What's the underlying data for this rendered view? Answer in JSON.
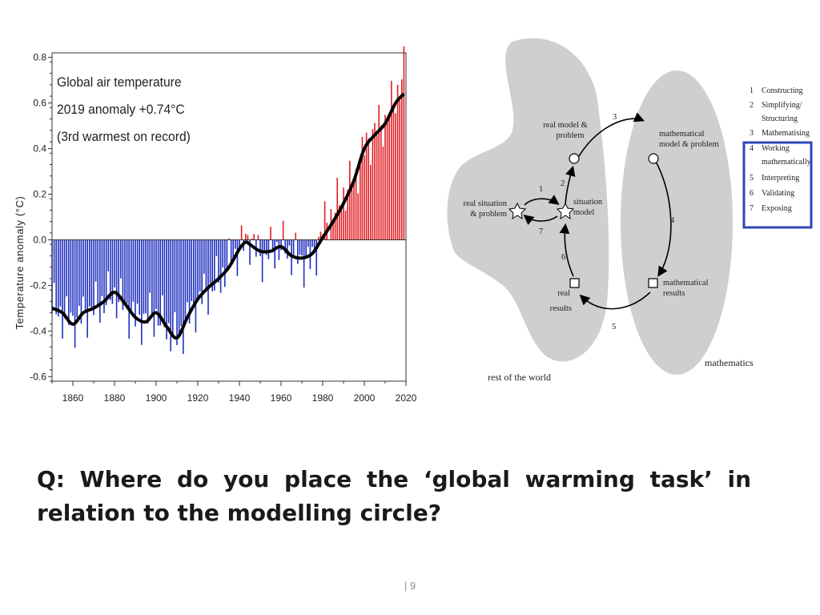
{
  "chart_data": {
    "type": "bar",
    "title_lines": [
      "Global air temperature",
      "2019 anomaly +0.74°C",
      "(3rd warmest on record)"
    ],
    "ylabel": "Temperature anomaly (°C)",
    "xlabel": "",
    "xlim": [
      1850,
      2020
    ],
    "ylim": [
      -0.62,
      0.82
    ],
    "xticks": [
      1860,
      1880,
      1900,
      1920,
      1940,
      1960,
      1980,
      2000,
      2020
    ],
    "yticks": [
      {
        "value": 0.8,
        "label": "0.8"
      },
      {
        "value": 0.6,
        "label": "0.6"
      },
      {
        "value": 0.4,
        "label": "0.4"
      },
      {
        "value": 0.2,
        "label": "0.2"
      },
      {
        "value": 0.0,
        "label": "0.0"
      },
      {
        "value": -0.2,
        "label": "-0.2"
      },
      {
        "value": -0.4,
        "label": "-0.4"
      },
      {
        "value": -0.6,
        "label": "-0.6"
      }
    ],
    "colors": {
      "positive": "#e31e24",
      "negative": "#1f2fbf",
      "smooth": "#000000"
    },
    "smoothed": {
      "x": [
        1850,
        1855,
        1860,
        1865,
        1870,
        1875,
        1880,
        1885,
        1890,
        1895,
        1900,
        1905,
        1910,
        1915,
        1920,
        1925,
        1930,
        1935,
        1940,
        1943,
        1945,
        1950,
        1955,
        1960,
        1965,
        1970,
        1975,
        1980,
        1985,
        1990,
        1995,
        2000,
        2005,
        2010,
        2015,
        2019
      ],
      "y": [
        -0.3,
        -0.32,
        -0.37,
        -0.32,
        -0.3,
        -0.27,
        -0.23,
        -0.28,
        -0.34,
        -0.36,
        -0.32,
        -0.38,
        -0.43,
        -0.34,
        -0.26,
        -0.21,
        -0.17,
        -0.12,
        -0.04,
        -0.01,
        -0.02,
        -0.05,
        -0.05,
        -0.03,
        -0.07,
        -0.08,
        -0.06,
        0.01,
        0.08,
        0.16,
        0.26,
        0.4,
        0.46,
        0.51,
        0.6,
        0.64
      ]
    },
    "annual_anchors": {
      "x": [
        1850,
        1860,
        1870,
        1880,
        1890,
        1900,
        1910,
        1920,
        1930,
        1940,
        1945,
        1950,
        1960,
        1970,
        1975,
        1980,
        1985,
        1990,
        1995,
        2000,
        2005,
        2010,
        2015,
        2019
      ],
      "y": [
        -0.3,
        -0.36,
        -0.3,
        -0.24,
        -0.35,
        -0.33,
        -0.44,
        -0.27,
        -0.18,
        -0.04,
        0.01,
        -0.08,
        -0.03,
        -0.09,
        -0.1,
        0.05,
        0.12,
        0.2,
        0.26,
        0.4,
        0.48,
        0.52,
        0.62,
        0.74
      ]
    }
  },
  "diagram": {
    "nodes": {
      "real_situation": "real situation\n& problem",
      "situation_model": "situation\nmodel",
      "real_model": "real model &\nproblem",
      "math_model": "mathematical\nmodel & problem",
      "math_results": "mathematical\nresults",
      "real_results": "real\nresults"
    },
    "step_numbers": [
      "1",
      "2",
      "3",
      "4",
      "5",
      "6",
      "7"
    ],
    "region_labels": {
      "rest_of_world": "rest of the world",
      "mathematics": "mathematics"
    },
    "legend": [
      {
        "num": "1",
        "text": "Constructing"
      },
      {
        "num": "2",
        "text": "Simplifying/\nStructuring"
      },
      {
        "num": "3",
        "text": "Mathematising"
      },
      {
        "num": "4",
        "text": "Working\nmathematically"
      },
      {
        "num": "5",
        "text": "Interpreting"
      },
      {
        "num": "6",
        "text": "Validating"
      },
      {
        "num": "7",
        "text": "Exposing"
      }
    ],
    "highlight_color": "#2f45b8",
    "region_color": "#cfcfcf"
  },
  "question": "Q: Where do you place the ‘global warming task’ in relation to the modelling circle?",
  "footer": "| 9"
}
